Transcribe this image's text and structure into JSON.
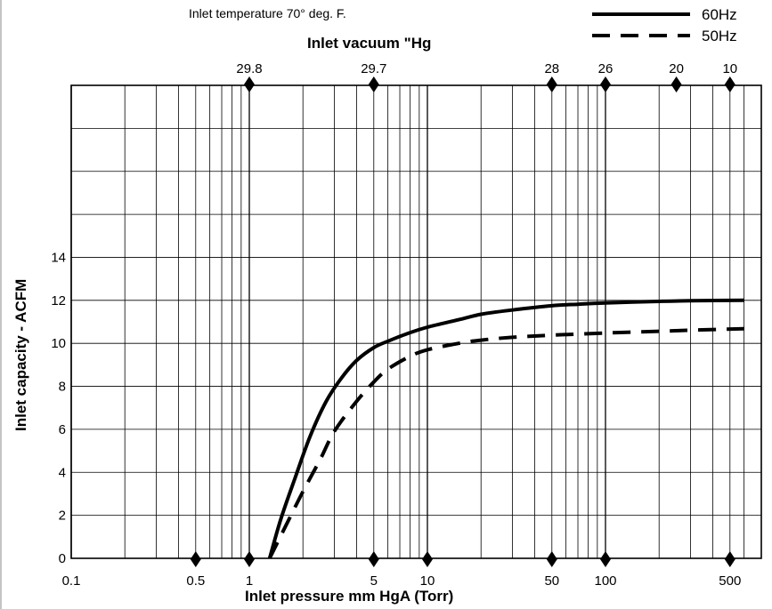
{
  "chart_data": {
    "type": "line",
    "note": "Inlet temperature 70° deg. F.",
    "xlabel": "Inlet pressure mm HgA (Torr)",
    "x2label": "Inlet vacuum  \"Hg",
    "ylabel": "Inlet capacity - ACFM",
    "x_scale": "log",
    "xlim": [
      0.1,
      600
    ],
    "ylim": [
      0,
      22
    ],
    "grid": true,
    "legend_position": "top-right",
    "x_ticks": [
      {
        "value": 0.1,
        "label": "0.1"
      },
      {
        "value": 0.5,
        "label": "0.5"
      },
      {
        "value": 1,
        "label": "1"
      },
      {
        "value": 5,
        "label": "5"
      },
      {
        "value": 10,
        "label": "10"
      },
      {
        "value": 50,
        "label": "50"
      },
      {
        "value": 100,
        "label": "100"
      },
      {
        "value": 500,
        "label": "500"
      }
    ],
    "x2_ticks": [
      {
        "value": 1,
        "label": "29.8"
      },
      {
        "value": 5,
        "label": "29.7"
      },
      {
        "value": 50,
        "label": "28"
      },
      {
        "value": 100,
        "label": "26"
      },
      {
        "value": 250,
        "label": "20"
      },
      {
        "value": 500,
        "label": "10"
      }
    ],
    "y_ticks": [
      {
        "value": 0,
        "label": "0"
      },
      {
        "value": 2,
        "label": "2"
      },
      {
        "value": 4,
        "label": "4"
      },
      {
        "value": 6,
        "label": "6"
      },
      {
        "value": 8,
        "label": "8"
      },
      {
        "value": 10,
        "label": "10"
      },
      {
        "value": 12,
        "label": "12"
      },
      {
        "value": 14,
        "label": "14"
      }
    ],
    "y_gridlines": [
      0,
      2,
      4,
      6,
      8,
      10,
      12,
      14,
      16,
      18,
      20,
      22
    ],
    "series": [
      {
        "name": "60Hz",
        "style": "solid",
        "color": "#000000",
        "x": [
          1.3,
          1.5,
          1.8,
          2.2,
          2.7,
          3.3,
          4,
          5,
          6,
          8,
          10,
          15,
          20,
          30,
          50,
          70,
          100,
          200,
          300,
          600
        ],
        "y": [
          0.0,
          1.8,
          3.7,
          5.7,
          7.3,
          8.4,
          9.2,
          9.8,
          10.1,
          10.5,
          10.75,
          11.1,
          11.35,
          11.55,
          11.75,
          11.82,
          11.88,
          11.95,
          11.98,
          12.0
        ]
      },
      {
        "name": "50Hz",
        "style": "dashed",
        "color": "#000000",
        "x": [
          1.3,
          1.6,
          2,
          2.5,
          3,
          4,
          5,
          6,
          8,
          10,
          15,
          20,
          30,
          50,
          100,
          200,
          300,
          600
        ],
        "y": [
          0.0,
          1.5,
          3.1,
          4.6,
          5.9,
          7.3,
          8.2,
          8.8,
          9.4,
          9.7,
          10.0,
          10.15,
          10.28,
          10.38,
          10.48,
          10.56,
          10.61,
          10.68
        ]
      }
    ]
  }
}
